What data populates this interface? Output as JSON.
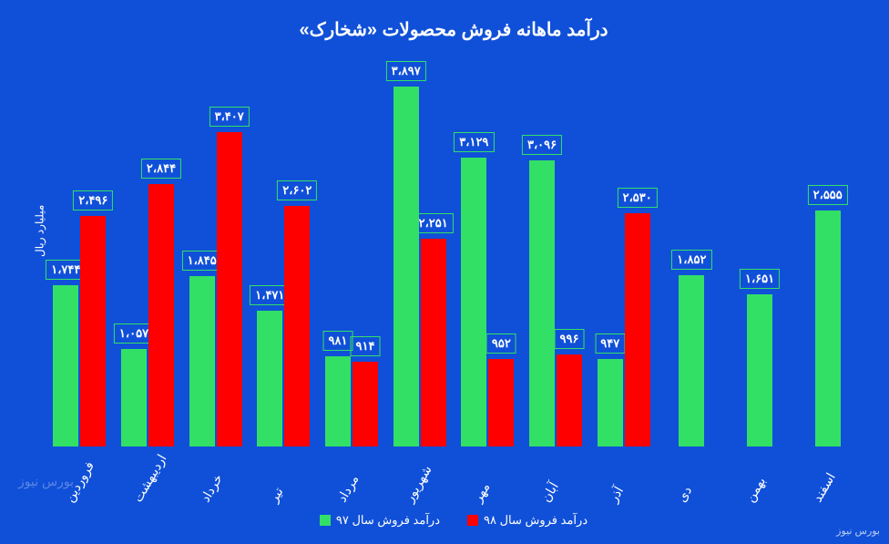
{
  "chart": {
    "type": "bar",
    "title": "درآمد ماهانه فروش محصولات «شخارک»",
    "y_axis_label": "میلیارد ریال",
    "background_color": "#1050d8",
    "colors": {
      "series_97": "#33e066",
      "series_98": "#ff0000",
      "label_border": "#33e066",
      "text": "#ffffff"
    },
    "ylim_max": 3897,
    "months": [
      {
        "name": "فروردین",
        "v97": 1744,
        "l97": "۱،۷۴۴",
        "v98": 2496,
        "l98": "۲،۴۹۶"
      },
      {
        "name": "اردیبهشت",
        "v97": 1057,
        "l97": "۱،۰۵۷",
        "v98": 2844,
        "l98": "۲،۸۴۴"
      },
      {
        "name": "خرداد",
        "v97": 1845,
        "l97": "۱،۸۴۵",
        "v98": 3407,
        "l98": "۳،۴۰۷"
      },
      {
        "name": "تیر",
        "v97": 1471,
        "l97": "۱،۴۷۱",
        "v98": 2602,
        "l98": "۲،۶۰۲"
      },
      {
        "name": "مرداد",
        "v97": 981,
        "l97": "۹۸۱",
        "v98": 914,
        "l98": "۹۱۴"
      },
      {
        "name": "شهریور",
        "v97": 3897,
        "l97": "۳،۸۹۷",
        "v98": 2251,
        "l98": "۲،۲۵۱"
      },
      {
        "name": "مهر",
        "v97": 3129,
        "l97": "۳،۱۲۹",
        "v98": 952,
        "l98": "۹۵۲"
      },
      {
        "name": "آبان",
        "v97": 3096,
        "l97": "۳،۰۹۶",
        "v98": 996,
        "l98": "۹۹۶"
      },
      {
        "name": "آذر",
        "v97": 947,
        "l97": "۹۴۷",
        "v98": 2530,
        "l98": "۲،۵۳۰"
      },
      {
        "name": "دی",
        "v97": 1852,
        "l97": "۱،۸۵۲",
        "v98": null,
        "l98": null
      },
      {
        "name": "بهمن",
        "v97": 1651,
        "l97": "۱،۶۵۱",
        "v98": null,
        "l98": null
      },
      {
        "name": "اسفند",
        "v97": 2555,
        "l97": "۲،۵۵۵",
        "v98": null,
        "l98": null
      }
    ],
    "legend": {
      "s97": "درآمد فروش سال ۹۷",
      "s98": "درآمد فروش سال ۹۸"
    },
    "watermark_right": "بورس نیوز",
    "watermark_left": "بورس نیوز"
  }
}
